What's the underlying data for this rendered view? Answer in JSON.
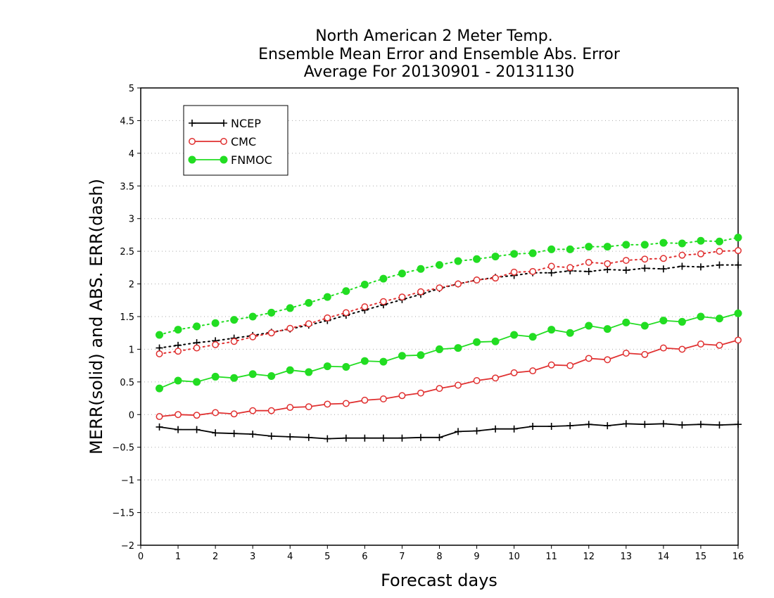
{
  "chart_data": {
    "type": "line",
    "title": [
      "North American 2 Meter Temp.",
      "Ensemble Mean Error and Ensemble Abs. Error",
      "Average For 20130901 - 20131130"
    ],
    "xlabel": "Forecast days",
    "ylabel": "MERR(solid) and ABS. ERR(dash)",
    "xlim": [
      0,
      16
    ],
    "ylim": [
      -2,
      5
    ],
    "xticks": [
      0,
      1,
      2,
      3,
      4,
      5,
      6,
      7,
      8,
      9,
      10,
      11,
      12,
      13,
      14,
      15,
      16
    ],
    "yticks": [
      -2,
      -1.5,
      -1,
      -0.5,
      0,
      0.5,
      1,
      1.5,
      2,
      2.5,
      3,
      3.5,
      4,
      4.5,
      5
    ],
    "ytick_labels": [
      "−2",
      "−1.5",
      "−1",
      "−0.5",
      "0",
      "0.5",
      "1",
      "1.5",
      "2",
      "2.5",
      "3",
      "3.5",
      "4",
      "4.5",
      "5"
    ],
    "grid": "horizontal dotted",
    "legend_position": "top-left",
    "x": [
      0.5,
      1,
      1.5,
      2,
      2.5,
      3,
      3.5,
      4,
      4.5,
      5,
      5.5,
      6,
      6.5,
      7,
      7.5,
      8,
      8.5,
      9,
      9.5,
      10,
      10.5,
      11,
      11.5,
      12,
      12.5,
      13,
      13.5,
      14,
      14.5,
      15,
      15.5,
      16
    ],
    "series": [
      {
        "name": "NCEP",
        "color": "#000000",
        "marker": "plus",
        "mean_error": [
          -0.19,
          -0.23,
          -0.23,
          -0.28,
          -0.29,
          -0.3,
          -0.33,
          -0.34,
          -0.35,
          -0.37,
          -0.36,
          -0.36,
          -0.36,
          -0.36,
          -0.35,
          -0.35,
          -0.26,
          -0.25,
          -0.22,
          -0.22,
          -0.18,
          -0.18,
          -0.17,
          -0.15,
          -0.17,
          -0.14,
          -0.15,
          -0.14,
          -0.16,
          -0.15,
          -0.16,
          -0.15
        ],
        "abs_error": [
          1.02,
          1.06,
          1.1,
          1.13,
          1.17,
          1.21,
          1.26,
          1.31,
          1.37,
          1.44,
          1.52,
          1.6,
          1.68,
          1.76,
          1.84,
          1.93,
          2.0,
          2.06,
          2.1,
          2.13,
          2.17,
          2.17,
          2.2,
          2.19,
          2.22,
          2.21,
          2.24,
          2.23,
          2.27,
          2.26,
          2.29,
          2.29
        ]
      },
      {
        "name": "CMC",
        "color": "#e03030",
        "marker": "open-circle",
        "mean_error": [
          -0.03,
          0.0,
          -0.01,
          0.03,
          0.01,
          0.06,
          0.06,
          0.11,
          0.12,
          0.16,
          0.17,
          0.22,
          0.24,
          0.29,
          0.33,
          0.4,
          0.45,
          0.52,
          0.56,
          0.64,
          0.67,
          0.76,
          0.75,
          0.86,
          0.84,
          0.94,
          0.92,
          1.02,
          1.0,
          1.08,
          1.06,
          1.14
        ],
        "abs_error": [
          0.93,
          0.97,
          1.02,
          1.07,
          1.12,
          1.19,
          1.25,
          1.32,
          1.39,
          1.48,
          1.56,
          1.65,
          1.73,
          1.8,
          1.88,
          1.94,
          2.0,
          2.06,
          2.09,
          2.18,
          2.19,
          2.27,
          2.25,
          2.33,
          2.31,
          2.36,
          2.38,
          2.39,
          2.44,
          2.46,
          2.5,
          2.51
        ]
      },
      {
        "name": "FNMOC",
        "color": "#22dd22",
        "marker": "filled-circle",
        "mean_error": [
          0.4,
          0.52,
          0.5,
          0.58,
          0.56,
          0.62,
          0.59,
          0.68,
          0.65,
          0.74,
          0.73,
          0.82,
          0.81,
          0.9,
          0.91,
          1.0,
          1.02,
          1.11,
          1.12,
          1.22,
          1.19,
          1.3,
          1.25,
          1.36,
          1.31,
          1.41,
          1.36,
          1.44,
          1.42,
          1.5,
          1.47,
          1.55
        ],
        "abs_error": [
          1.22,
          1.3,
          1.35,
          1.4,
          1.45,
          1.5,
          1.56,
          1.63,
          1.71,
          1.8,
          1.89,
          1.99,
          2.08,
          2.16,
          2.23,
          2.29,
          2.35,
          2.38,
          2.42,
          2.46,
          2.47,
          2.53,
          2.53,
          2.57,
          2.57,
          2.6,
          2.6,
          2.63,
          2.62,
          2.66,
          2.65,
          2.71
        ]
      }
    ]
  }
}
